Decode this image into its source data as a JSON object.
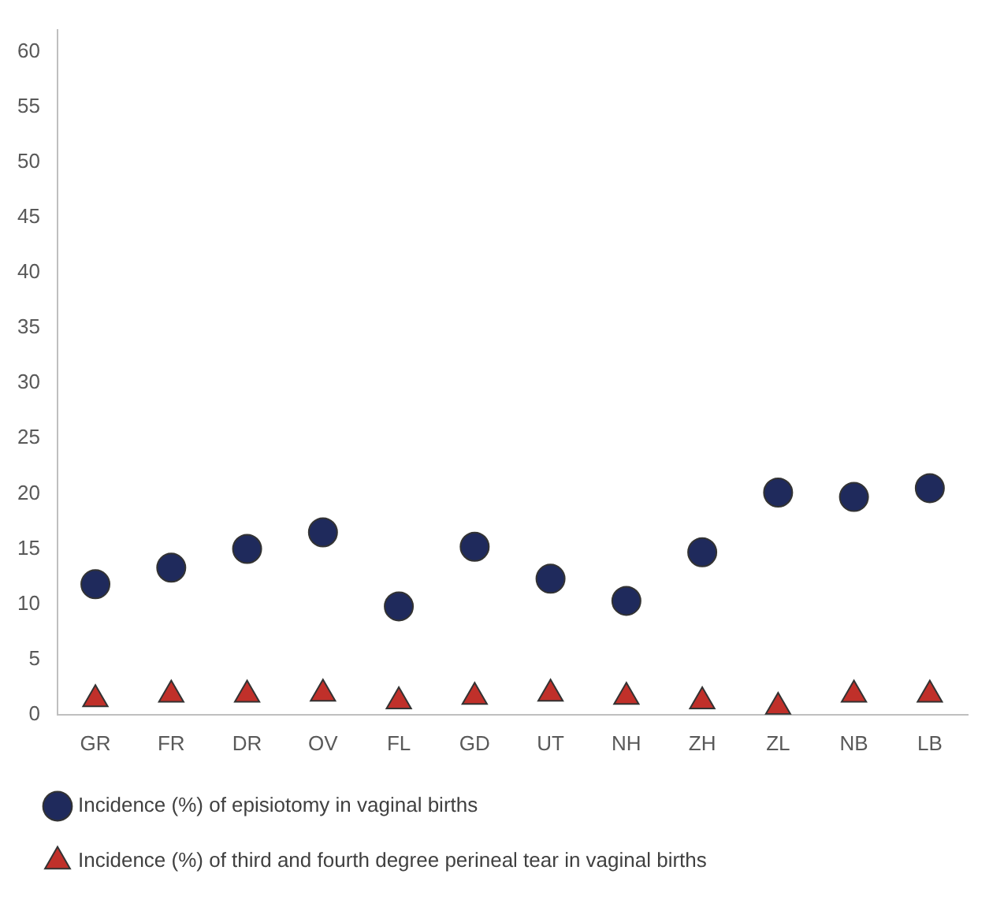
{
  "chart_data": {
    "type": "scatter",
    "categories": [
      "GR",
      "FR",
      "DR",
      "OV",
      "FL",
      "GD",
      "UT",
      "NH",
      "ZH",
      "ZL",
      "NB",
      "LB"
    ],
    "series": [
      {
        "name": "Incidence (%) of episiotomy in vaginal births",
        "color": "#1f2a5c",
        "marker": "circle",
        "values": [
          11.8,
          13.3,
          15.0,
          16.5,
          9.8,
          15.2,
          12.3,
          10.3,
          14.7,
          20.1,
          19.7,
          20.5
        ]
      },
      {
        "name": "Incidence (%) of third and fourth degree perineal tear in vaginal births",
        "color": "#c0302a",
        "marker": "triangle",
        "values": [
          1.4,
          1.8,
          1.8,
          1.9,
          1.2,
          1.6,
          1.9,
          1.6,
          1.2,
          0.7,
          1.8,
          1.8
        ]
      }
    ],
    "ylim": [
      0,
      62
    ],
    "yticks": [
      0,
      5,
      10,
      15,
      20,
      25,
      30,
      35,
      40,
      45,
      50,
      55,
      60
    ],
    "grid": false,
    "legend": "bottom"
  }
}
